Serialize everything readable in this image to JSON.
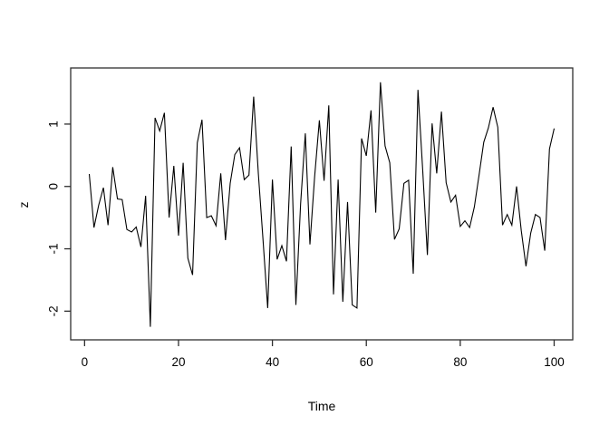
{
  "chart_data": {
    "type": "line",
    "title": "",
    "xlabel": "Time",
    "ylabel": "z",
    "x_start": 1,
    "x_step": 1,
    "x_ticks": [
      0,
      20,
      40,
      60,
      80,
      100
    ],
    "y_ticks": [
      -2,
      -1,
      0,
      1
    ],
    "xlim": [
      -2.96,
      103.96
    ],
    "ylim": [
      -2.46,
      1.9
    ],
    "grid": false,
    "legend": "none",
    "line_color": "#000000",
    "box_color": "#2f2f2f",
    "background": "#ffffff",
    "values": [
      0.2,
      -0.66,
      -0.3,
      -0.02,
      -0.62,
      0.31,
      -0.2,
      -0.21,
      -0.69,
      -0.73,
      -0.65,
      -0.97,
      -0.15,
      -2.25,
      1.1,
      0.89,
      1.18,
      -0.5,
      0.33,
      -0.79,
      0.38,
      -1.15,
      -1.42,
      0.7,
      1.07,
      -0.5,
      -0.47,
      -0.63,
      0.21,
      -0.86,
      0.05,
      0.51,
      0.62,
      0.11,
      0.18,
      1.44,
      0.2,
      -0.85,
      -1.95,
      0.11,
      -1.17,
      -0.95,
      -1.2,
      0.64,
      -1.9,
      -0.28,
      0.85,
      -0.93,
      0.16,
      1.06,
      0.09,
      1.3,
      -1.73,
      0.11,
      -1.85,
      -0.25,
      -1.9,
      -1.95,
      0.77,
      0.49,
      1.22,
      -0.42,
      1.67,
      0.65,
      0.38,
      -0.85,
      -0.68,
      0.05,
      0.1,
      -1.4,
      1.55,
      0.27,
      -1.1,
      1.01,
      0.21,
      1.2,
      0.06,
      -0.25,
      -0.14,
      -0.64,
      -0.55,
      -0.66,
      -0.33,
      0.18,
      0.71,
      0.94,
      1.27,
      0.95,
      -0.62,
      -0.45,
      -0.62,
      0.0,
      -0.71,
      -1.28,
      -0.75,
      -0.45,
      -0.5,
      -1.03,
      0.6,
      0.93
    ]
  }
}
